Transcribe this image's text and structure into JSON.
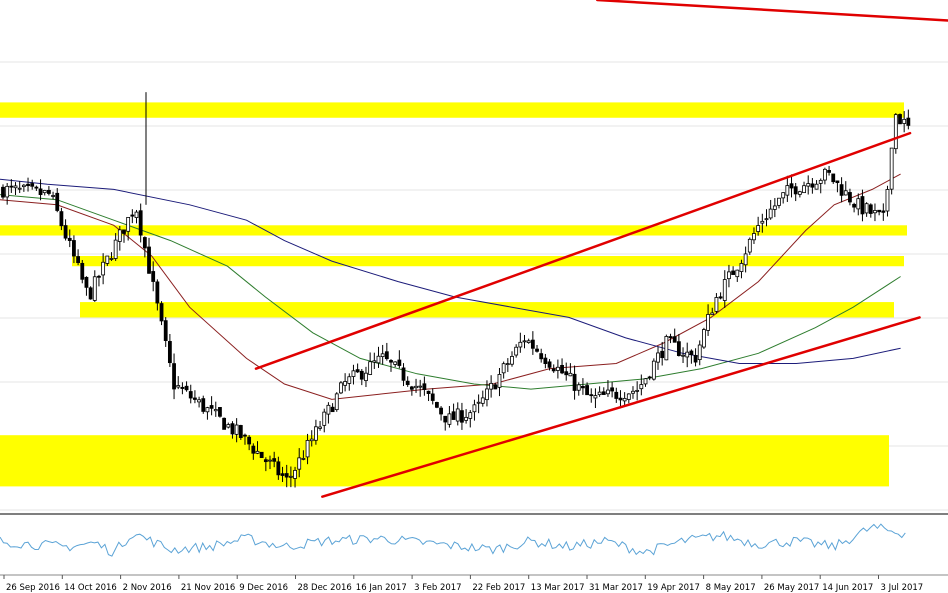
{
  "chart_data": {
    "type": "candlestick",
    "x_tick_labels": [
      "26 Sep 2016",
      "14 Oct 2016",
      "2 Nov 2016",
      "21 Nov 2016",
      "9 Dec 2016",
      "28 Dec 2016",
      "16 Jan 2017",
      "3 Feb 2017",
      "22 Feb 2017",
      "13 Mar 2017",
      "31 Mar 2017",
      "19 Apr 2017",
      "8 May 2017",
      "26 May 2017",
      "14 Jun 2017",
      "3 Jul 2017"
    ],
    "price_path": [
      [
        0,
        0.63
      ],
      [
        0.05,
        0.62
      ],
      [
        0.09,
        0.42
      ],
      [
        0.14,
        0.6
      ],
      [
        0.18,
        0.25
      ],
      [
        0.25,
        0.15
      ],
      [
        0.3,
        0.06
      ],
      [
        0.36,
        0.25
      ],
      [
        0.4,
        0.3
      ],
      [
        0.44,
        0.24
      ],
      [
        0.47,
        0.18
      ],
      [
        0.5,
        0.2
      ],
      [
        0.55,
        0.34
      ],
      [
        0.62,
        0.22
      ],
      [
        0.67,
        0.24
      ],
      [
        0.7,
        0.33
      ],
      [
        0.73,
        0.3
      ],
      [
        0.75,
        0.41
      ],
      [
        0.78,
        0.5
      ],
      [
        0.8,
        0.57
      ],
      [
        0.83,
        0.63
      ],
      [
        0.87,
        0.66
      ],
      [
        0.9,
        0.6
      ],
      [
        0.93,
        0.57
      ],
      [
        0.94,
        0.78
      ],
      [
        0.955,
        0.75
      ]
    ],
    "support_resistance_zones": [
      {
        "from": 0.77,
        "to": 0.8
      },
      {
        "from": 0.54,
        "to": 0.56
      },
      {
        "from": 0.48,
        "to": 0.5
      },
      {
        "from": 0.38,
        "to": 0.41
      },
      {
        "from": 0.05,
        "to": 0.15
      }
    ],
    "trendlines": [
      {
        "name": "channel-top",
        "points": [
          [
            0.27,
            0.28
          ],
          [
            0.96,
            0.74
          ]
        ]
      },
      {
        "name": "channel-bottom",
        "points": [
          [
            0.34,
            0.03
          ],
          [
            0.97,
            0.38
          ]
        ]
      },
      {
        "name": "resistance",
        "points": [
          [
            0.63,
            1.0
          ],
          [
            1.0,
            0.96
          ]
        ]
      }
    ],
    "moving_averages": [
      {
        "color": "#8b2020",
        "points": [
          [
            0,
            0.61
          ],
          [
            0.06,
            0.6
          ],
          [
            0.12,
            0.56
          ],
          [
            0.16,
            0.5
          ],
          [
            0.2,
            0.4
          ],
          [
            0.26,
            0.3
          ],
          [
            0.3,
            0.25
          ],
          [
            0.35,
            0.22
          ],
          [
            0.4,
            0.23
          ],
          [
            0.45,
            0.24
          ],
          [
            0.52,
            0.25
          ],
          [
            0.58,
            0.28
          ],
          [
            0.65,
            0.29
          ],
          [
            0.7,
            0.33
          ],
          [
            0.75,
            0.38
          ],
          [
            0.8,
            0.45
          ],
          [
            0.85,
            0.55
          ],
          [
            0.88,
            0.6
          ],
          [
            0.92,
            0.63
          ],
          [
            0.95,
            0.66
          ]
        ]
      },
      {
        "color": "#2e7d2e",
        "points": [
          [
            0,
            0.62
          ],
          [
            0.06,
            0.61
          ],
          [
            0.12,
            0.57
          ],
          [
            0.18,
            0.53
          ],
          [
            0.24,
            0.48
          ],
          [
            0.28,
            0.42
          ],
          [
            0.33,
            0.35
          ],
          [
            0.38,
            0.3
          ],
          [
            0.44,
            0.27
          ],
          [
            0.5,
            0.25
          ],
          [
            0.56,
            0.24
          ],
          [
            0.62,
            0.25
          ],
          [
            0.68,
            0.26
          ],
          [
            0.74,
            0.28
          ],
          [
            0.8,
            0.31
          ],
          [
            0.86,
            0.36
          ],
          [
            0.9,
            0.4
          ],
          [
            0.95,
            0.46
          ]
        ]
      },
      {
        "color": "#1c1c7a",
        "points": [
          [
            0,
            0.65
          ],
          [
            0.05,
            0.64
          ],
          [
            0.12,
            0.63
          ],
          [
            0.2,
            0.6
          ],
          [
            0.26,
            0.57
          ],
          [
            0.3,
            0.53
          ],
          [
            0.35,
            0.49
          ],
          [
            0.42,
            0.45
          ],
          [
            0.48,
            0.42
          ],
          [
            0.54,
            0.4
          ],
          [
            0.6,
            0.38
          ],
          [
            0.66,
            0.34
          ],
          [
            0.72,
            0.31
          ],
          [
            0.78,
            0.29
          ],
          [
            0.84,
            0.29
          ],
          [
            0.9,
            0.3
          ],
          [
            0.95,
            0.32
          ]
        ]
      }
    ],
    "indicator_path": [
      [
        0,
        0.55
      ],
      [
        0.03,
        0.5
      ],
      [
        0.07,
        0.45
      ],
      [
        0.1,
        0.52
      ],
      [
        0.12,
        0.35
      ],
      [
        0.14,
        0.7
      ],
      [
        0.18,
        0.4
      ],
      [
        0.22,
        0.45
      ],
      [
        0.26,
        0.6
      ],
      [
        0.3,
        0.45
      ],
      [
        0.34,
        0.55
      ],
      [
        0.4,
        0.6
      ],
      [
        0.46,
        0.5
      ],
      [
        0.52,
        0.4
      ],
      [
        0.56,
        0.55
      ],
      [
        0.6,
        0.45
      ],
      [
        0.64,
        0.55
      ],
      [
        0.68,
        0.35
      ],
      [
        0.72,
        0.55
      ],
      [
        0.76,
        0.65
      ],
      [
        0.8,
        0.5
      ],
      [
        0.84,
        0.55
      ],
      [
        0.88,
        0.45
      ],
      [
        0.92,
        0.8
      ],
      [
        0.95,
        0.7
      ]
    ],
    "colors": {
      "zone": "#ffff00",
      "trendline": "#e00000",
      "candle": "#000000",
      "grid": "#e6e6e6",
      "indicator": "#5ba3d6",
      "separator": "#555555"
    }
  }
}
